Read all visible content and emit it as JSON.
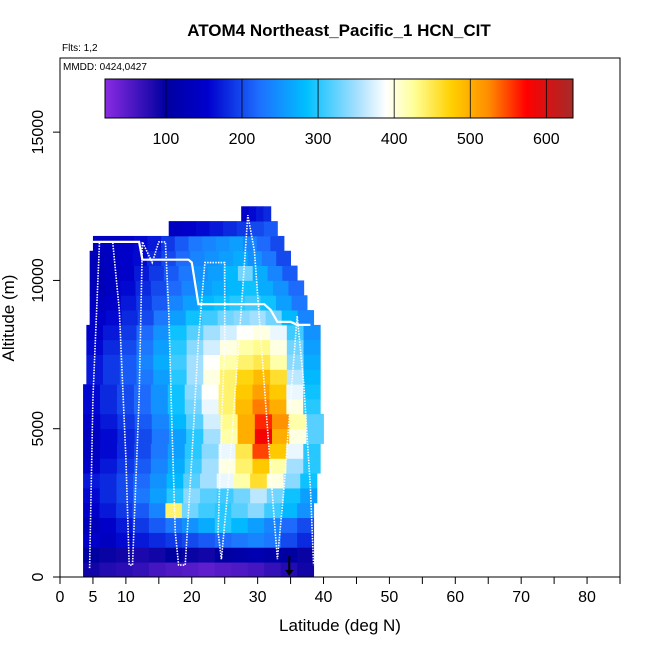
{
  "chart_data": {
    "type": "heatmap",
    "title": "ATOM4 Northeast_Pacific_1 HCN_CIT",
    "flights_text": "Flts: 1,2",
    "dates_text": "MMDD: 0424,0427",
    "xlabel": "Latitude (deg N)",
    "ylabel": "Altitude (m)",
    "xlim": [
      0,
      85
    ],
    "ylim": [
      0,
      17500
    ],
    "x_ticks": [
      0,
      5,
      10,
      20,
      30,
      40,
      50,
      60,
      70,
      80
    ],
    "y_ticks": [
      0,
      5000,
      10000,
      15000
    ],
    "colorbar": {
      "range": [
        20,
        635
      ],
      "ticks": [
        100,
        200,
        300,
        400,
        500,
        600
      ],
      "dividers": [
        100,
        200,
        300,
        400,
        500,
        600
      ]
    },
    "bin_height_m": 500,
    "cell_rows": [
      {
        "alt": 0,
        "x0": 3.5,
        "x1": 38.5,
        "v": [
          90,
          80,
          75,
          70,
          60,
          55,
          50,
          45,
          50,
          55,
          60,
          70,
          80,
          90
        ]
      },
      {
        "alt": 500,
        "x0": 3.5,
        "x1": 38.5,
        "v": [
          100,
          95,
          90,
          85,
          90,
          100,
          95,
          90,
          100,
          110,
          120,
          110,
          100,
          95
        ]
      },
      {
        "alt": 1000,
        "x0": 3.5,
        "x1": 38.5,
        "v": [
          150,
          140,
          160,
          170,
          180,
          190,
          200,
          210,
          220,
          230,
          240,
          230,
          200,
          180
        ]
      },
      {
        "alt": 1500,
        "x0": 3.5,
        "x1": 38.5,
        "v": [
          130,
          150,
          170,
          190,
          210,
          230,
          250,
          270,
          300,
          280,
          260,
          240,
          220,
          200
        ]
      },
      {
        "alt": 2000,
        "x0": 3.5,
        "x1": 38.5,
        "v": [
          150,
          170,
          190,
          210,
          240,
          440,
          330,
          310,
          300,
          320,
          340,
          310,
          280,
          250
        ]
      },
      {
        "alt": 2500,
        "x0": 3.5,
        "x1": 39,
        "v": [
          160,
          180,
          200,
          230,
          260,
          300,
          340,
          320,
          310,
          330,
          360,
          330,
          290,
          260
        ]
      },
      {
        "alt": 3000,
        "x0": 3.5,
        "x1": 39,
        "v": [
          170,
          180,
          200,
          220,
          250,
          280,
          320,
          350,
          380,
          420,
          460,
          400,
          340,
          290
        ]
      },
      {
        "alt": 3500,
        "x0": 3.5,
        "x1": 39.5,
        "v": [
          150,
          170,
          190,
          210,
          240,
          270,
          310,
          350,
          400,
          440,
          480,
          420,
          350,
          300
        ]
      },
      {
        "alt": 4000,
        "x0": 3.5,
        "x1": 39.5,
        "v": [
          140,
          160,
          180,
          200,
          230,
          260,
          300,
          340,
          380,
          450,
          550,
          480,
          380,
          300
        ]
      },
      {
        "alt": 4500,
        "x0": 3.5,
        "x1": 40,
        "v": [
          140,
          160,
          180,
          200,
          230,
          260,
          300,
          350,
          420,
          500,
          580,
          500,
          400,
          320
        ]
      },
      {
        "alt": 5000,
        "x0": 3.5,
        "x1": 40,
        "v": [
          150,
          170,
          190,
          210,
          240,
          280,
          320,
          370,
          430,
          500,
          560,
          520,
          420,
          320
        ]
      },
      {
        "alt": 5500,
        "x0": 3.5,
        "x1": 39.5,
        "v": [
          160,
          180,
          200,
          220,
          250,
          290,
          330,
          380,
          440,
          490,
          530,
          500,
          400,
          300
        ]
      },
      {
        "alt": 6000,
        "x0": 3.5,
        "x1": 39.5,
        "v": [
          160,
          180,
          200,
          220,
          250,
          290,
          340,
          390,
          440,
          480,
          510,
          480,
          380,
          290
        ]
      },
      {
        "alt": 6500,
        "x0": 4,
        "x1": 39.5,
        "v": [
          170,
          190,
          210,
          230,
          260,
          300,
          350,
          400,
          440,
          470,
          490,
          460,
          360,
          280
        ]
      },
      {
        "alt": 7000,
        "x0": 4,
        "x1": 39.5,
        "v": [
          170,
          190,
          210,
          240,
          270,
          310,
          350,
          390,
          420,
          440,
          450,
          420,
          340,
          270
        ]
      },
      {
        "alt": 7500,
        "x0": 4,
        "x1": 39.5,
        "v": [
          160,
          180,
          200,
          230,
          260,
          300,
          340,
          370,
          400,
          420,
          430,
          400,
          330,
          260
        ]
      },
      {
        "alt": 8000,
        "x0": 4,
        "x1": 39.5,
        "v": [
          150,
          170,
          190,
          220,
          250,
          290,
          320,
          350,
          370,
          390,
          400,
          380,
          310,
          250
        ]
      },
      {
        "alt": 8500,
        "x0": 4.5,
        "x1": 38.5,
        "v": [
          150,
          160,
          180,
          200,
          230,
          260,
          290,
          310,
          330,
          340,
          350,
          330,
          280,
          240
        ]
      },
      {
        "alt": 9000,
        "x0": 4.5,
        "x1": 37.5,
        "v": [
          140,
          150,
          170,
          190,
          210,
          240,
          260,
          280,
          290,
          300,
          310,
          290,
          260,
          230
        ]
      },
      {
        "alt": 9500,
        "x0": 4.5,
        "x1": 37,
        "v": [
          130,
          140,
          160,
          180,
          200,
          220,
          240,
          260,
          270,
          280,
          290,
          270,
          250,
          220
        ]
      },
      {
        "alt": 10000,
        "x0": 4.5,
        "x1": 36,
        "v": [
          130,
          140,
          150,
          170,
          190,
          210,
          230,
          250,
          260,
          280,
          330,
          270,
          240,
          210
        ]
      },
      {
        "alt": 10500,
        "x0": 4.5,
        "x1": 35,
        "v": [
          130,
          140,
          150,
          160,
          180,
          200,
          220,
          240,
          250,
          260,
          270,
          250,
          230,
          200
        ]
      },
      {
        "alt": 11000,
        "x0": 5,
        "x1": 34,
        "v": [
          140,
          140,
          150,
          160,
          170,
          190,
          210,
          230,
          240,
          250,
          260,
          240,
          220,
          200
        ]
      },
      {
        "alt": 11500,
        "x0": 16.5,
        "x1": 33,
        "v": [
          140,
          150,
          160,
          170,
          180,
          190,
          200,
          210
        ]
      },
      {
        "alt": 12000,
        "x0": 27.5,
        "x1": 32,
        "v": [
          150,
          160,
          170,
          180
        ]
      }
    ],
    "flight_track": [
      [
        4.5,
        300
      ],
      [
        5,
        6000
      ],
      [
        6,
        11300
      ],
      [
        8,
        11300
      ],
      [
        9,
        9000
      ],
      [
        10,
        4000
      ],
      [
        10.5,
        400
      ],
      [
        11,
        400
      ],
      [
        12,
        6000
      ],
      [
        12.5,
        11300
      ],
      [
        14,
        10600
      ],
      [
        15,
        11300
      ],
      [
        16,
        11300
      ],
      [
        16.5,
        9000
      ],
      [
        17,
        5000
      ],
      [
        17.5,
        1500
      ],
      [
        18,
        400
      ],
      [
        19,
        400
      ],
      [
        20,
        4000
      ],
      [
        21,
        8000
      ],
      [
        22,
        10600
      ],
      [
        24,
        10600
      ],
      [
        25,
        10600
      ],
      [
        25,
        8000
      ],
      [
        24.5,
        5000
      ],
      [
        24,
        1500
      ],
      [
        24.5,
        600
      ],
      [
        25.5,
        3000
      ],
      [
        26.5,
        6000
      ],
      [
        27.5,
        9000
      ],
      [
        28.5,
        12200
      ],
      [
        29.5,
        11000
      ],
      [
        30.5,
        8000
      ],
      [
        31.5,
        5000
      ],
      [
        32.5,
        2000
      ],
      [
        33,
        600
      ],
      [
        34,
        3000
      ],
      [
        35,
        6000
      ],
      [
        36,
        8800
      ],
      [
        37,
        6500
      ],
      [
        38,
        3000
      ],
      [
        38.5,
        400
      ]
    ],
    "track_line": [
      [
        5,
        11300
      ],
      [
        12,
        11300
      ],
      [
        12.5,
        10700
      ],
      [
        19.5,
        10700
      ],
      [
        20,
        10600
      ],
      [
        21,
        9200
      ],
      [
        22,
        9200
      ],
      [
        23,
        9200
      ],
      [
        31,
        9200
      ],
      [
        32,
        9000
      ],
      [
        33,
        8600
      ],
      [
        35,
        8600
      ],
      [
        36,
        8500
      ],
      [
        38,
        8500
      ]
    ],
    "marker": {
      "x": 34.8,
      "y0": 700,
      "y1": 0
    }
  }
}
